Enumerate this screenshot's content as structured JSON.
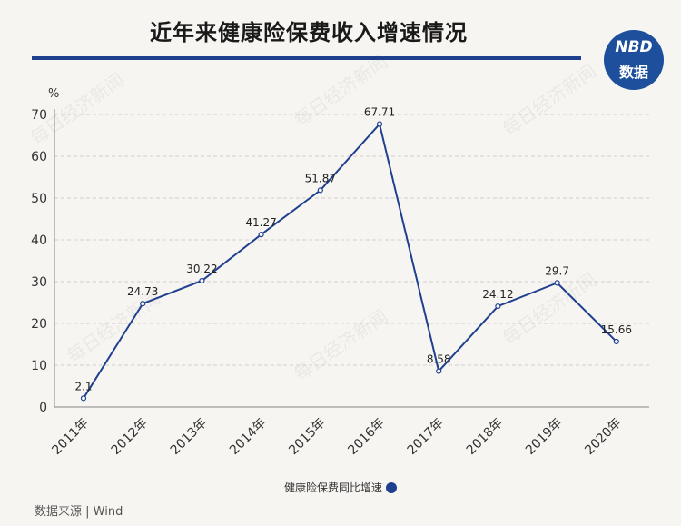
{
  "header": {
    "title": "近年来健康险保费收入增速情况",
    "logo_top": "NBD",
    "logo_bottom": "数据"
  },
  "source": "数据来源 | Wind",
  "watermark": "每日经济新闻",
  "colors": {
    "line": "#1f3f8f",
    "grid": "#cfcfcf",
    "logo": "#1d4f9c"
  },
  "chart_data": {
    "type": "line",
    "title": "近年来健康险保费收入增速情况",
    "ylabel": "%",
    "xlabel": "",
    "categories": [
      "2011年",
      "2012年",
      "2013年",
      "2014年",
      "2015年",
      "2016年",
      "2017年",
      "2018年",
      "2019年",
      "2020年"
    ],
    "series": [
      {
        "name": "健康险保费同比增速",
        "values": [
          2.1,
          24.73,
          30.22,
          41.27,
          51.87,
          67.71,
          8.58,
          24.12,
          29.7,
          15.66
        ],
        "labels": [
          "2.1",
          "24.73",
          "30.22",
          "41.27",
          "51.87",
          "67.71",
          "8.58",
          "24.12",
          "29.7",
          "15.66"
        ]
      }
    ],
    "ylim": [
      0,
      70
    ],
    "yticks": [
      0,
      10,
      20,
      30,
      40,
      50,
      60,
      70
    ],
    "grid": true,
    "legend_position": "bottom"
  }
}
